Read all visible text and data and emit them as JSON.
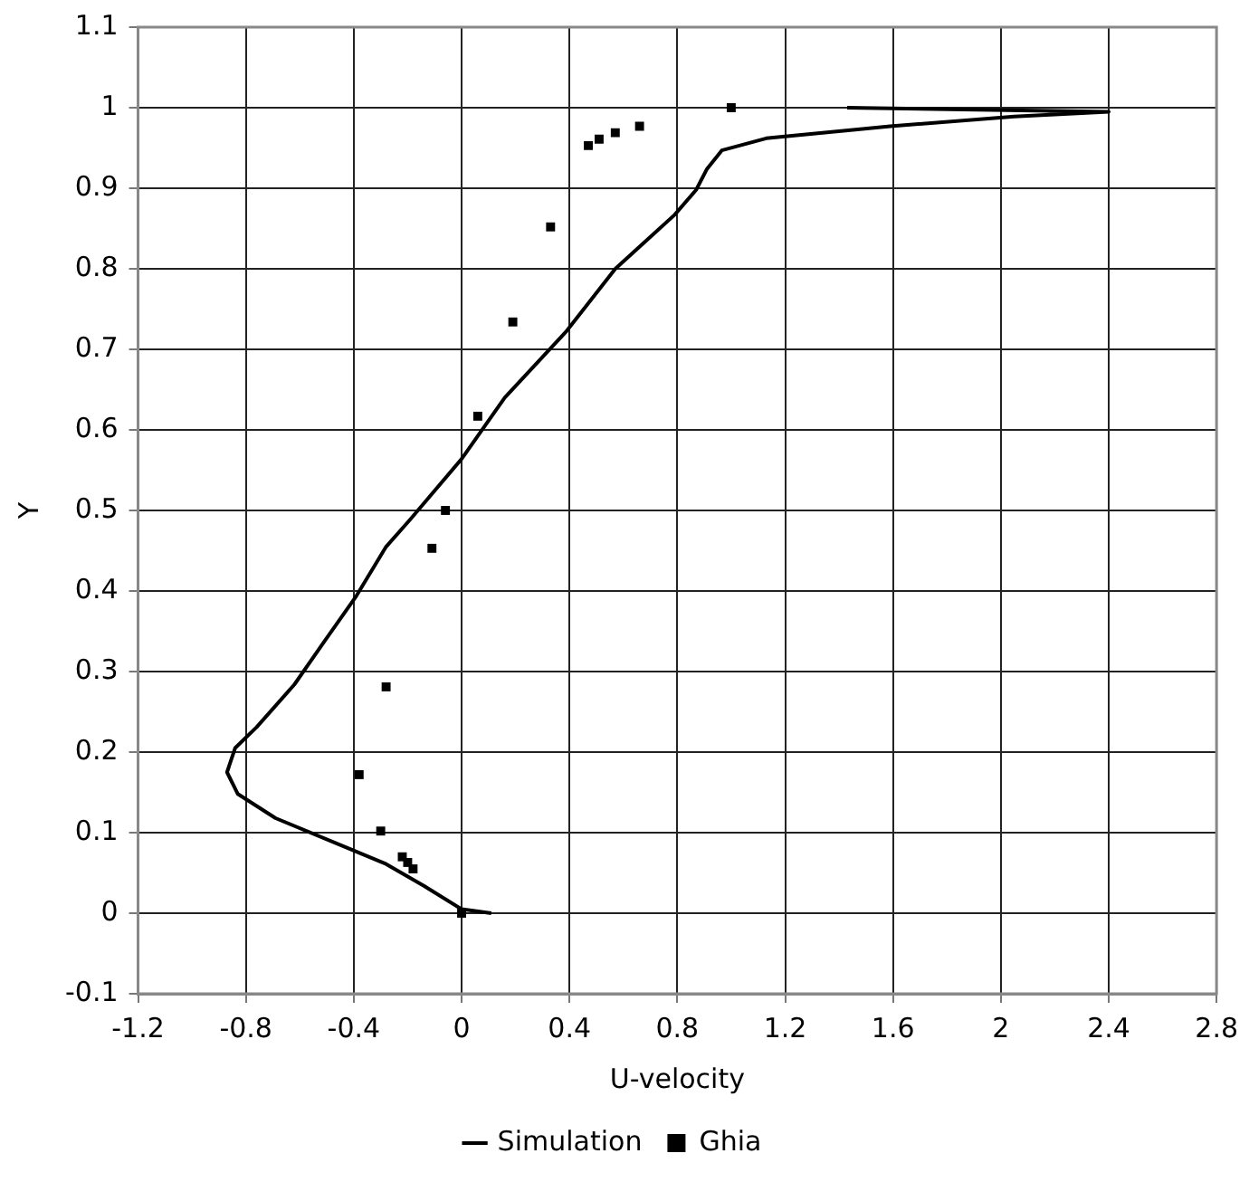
{
  "chart_data": {
    "type": "scatter",
    "xlabel": "U-velocity",
    "ylabel": "Y",
    "xlim": [
      -1.2,
      2.8
    ],
    "xticks": [
      -1.2,
      -0.8,
      -0.4,
      0,
      0.4,
      0.8,
      1.2,
      1.6,
      2,
      2.4,
      2.8
    ],
    "ylim": [
      -0.1,
      1.1
    ],
    "yticks": [
      -0.1,
      0,
      0.1,
      0.2,
      0.3,
      0.4,
      0.5,
      0.6,
      0.7,
      0.8,
      0.9,
      1,
      1.1
    ],
    "grid": true,
    "legend": "bottom",
    "series": [
      {
        "name": "Simulation",
        "type": "line",
        "color": "#000000",
        "marker": "none",
        "line_style": "solid",
        "x": [
          0.11,
          0,
          -0.14,
          -0.28,
          -0.46,
          -0.69,
          -0.83,
          -0.87,
          -0.84,
          -0.76,
          -0.62,
          -0.51,
          -0.39,
          -0.28,
          -0.19,
          0,
          0.16,
          0.39,
          0.57,
          0.79,
          0.87,
          0.91,
          0.965,
          1.13,
          1.59,
          2.05,
          2.4,
          1.43
        ],
        "values": [
          0,
          0.005,
          0.034,
          0.061,
          0.086,
          0.118,
          0.148,
          0.175,
          0.205,
          0.231,
          0.284,
          0.337,
          0.394,
          0.455,
          0.489,
          0.564,
          0.64,
          0.723,
          0.8,
          0.867,
          0.898,
          0.924,
          0.947,
          0.962,
          0.977,
          0.989,
          0.995,
          1
        ]
      },
      {
        "name": "Ghia",
        "type": "scatter",
        "color": "#000000",
        "marker": "square",
        "x": [
          1,
          0.66,
          0.57,
          0.51,
          0.47,
          0.33,
          0.19,
          0.06,
          -0.06,
          -0.11,
          -0.28,
          -0.38,
          -0.3,
          -0.22,
          -0.2,
          -0.18,
          0
        ],
        "values": [
          1,
          0.977,
          0.969,
          0.961,
          0.953,
          0.852,
          0.734,
          0.617,
          0.5,
          0.453,
          0.281,
          0.172,
          0.102,
          0.07,
          0.063,
          0.055,
          0
        ]
      }
    ]
  }
}
